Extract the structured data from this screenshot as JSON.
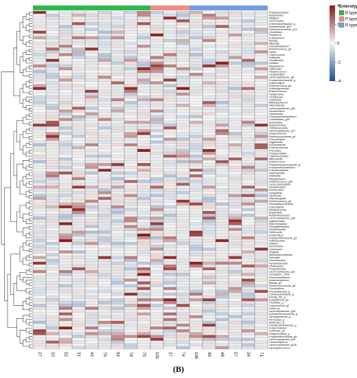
{
  "caption": "(B)",
  "chart_data": {
    "type": "heatmap",
    "title": "",
    "columns": [
      "27",
      "33",
      "52",
      "31",
      "42",
      "76",
      "94",
      "78",
      "75",
      "101",
      "37",
      "74",
      "106",
      "49",
      "48",
      "57",
      "24",
      "71"
    ],
    "column_groups": [
      "B type",
      "B type",
      "B type",
      "B type",
      "B type",
      "B type",
      "B type",
      "B type",
      "B type",
      "P type",
      "P type",
      "P type",
      "R type",
      "R type",
      "R type",
      "R type",
      "R type",
      "R type"
    ],
    "row_labels": [
      "Parabacteroides",
      "Bacteroides",
      "Alistipes",
      "Lachnospira",
      "Enterobacteriaceae_g",
      "Bacteroidales_g23",
      "Ruminococcaceae_g15",
      "Clostridium",
      "Roseburia",
      "Eubacterium",
      "Blautia",
      "Bilophila",
      "Faecalibacterium",
      "Ruminococcus_g2",
      "Dorea",
      "Coprococcus",
      "Sutterella",
      "Oscillibacter",
      "Dialister",
      "Megamonas",
      "Veillonella",
      "Streptococcus",
      "Lactobacillus",
      "Lachnospiraceae_g8",
      "Erysipelotrichaceae_g",
      "Anaerostipes",
      "Ruminococcus_g4",
      "Subdoligranulum",
      "Butyricicoccus",
      "Holdemania",
      "Turicibacter",
      "Collinsella",
      "Bifidobacterium",
      "Akkermansia",
      "Lachnospiraceae_g24",
      "Desulfovibrio",
      "Odoribacter",
      "Phascolarctobacterium",
      "Clostridiales_g20",
      "Barnesiella",
      "Butyricimonas",
      "Christensenella",
      "Lachnospiraceae_g17",
      "Anaerotruncus",
      "Ruminococcaceae_g4",
      "Flavonifractor",
      "Eggerthella",
      "Gordonibacter",
      "Porphyromonas",
      "Prevotella",
      "Paraprevotella",
      "Catenibacterium",
      "Mitsuokella",
      "Enterococcus",
      "Peptostreptococcaceae_g",
      "Erysipelatoclostridium",
      "Fusicatenibacter",
      "Haemophilus",
      "Klebsiella",
      "Megasphaera",
      "Ruminococcus_g2b",
      "Lachnoclostridium",
      "Intestinibacter",
      "Romboutsia",
      "Hungatella",
      "Tyzzerella",
      "Eisenbergiella",
      "Ruminococcus_g5",
      "Pseudoflavonifractor",
      "Coprobacter",
      "Intestinimonas",
      "Butyrivibrio",
      "Acidaminococcus",
      "Lachnospiraceae_g18",
      "Agathobacter",
      "Marvinbryantia",
      "Senegalimassilia",
      "Holdemanella",
      "Sellimonas",
      "Anaerofilum",
      "Erysipelotrichaceae_g3",
      "Adlercreutzia",
      "Slackia",
      "Escherichia",
      "Citrobacter",
      "Shigella",
      "Methanobrevibacter",
      "Victivallis",
      "Cloacibacillus",
      "Pyramidobacter",
      "Oxalobacter",
      "Parasutterella",
      "Lachnospiraceae_g21",
      "Clostridium_XlVa",
      "Ruminiclostridium",
      "Anaerobutyricum",
      "Blautia_g2",
      "Ruminococcaceae_g6",
      "Succinivibrio",
      "Prevotellaceae_g",
      "Coriobacteriaceae_g",
      "Family_XIII_g",
      "Eubacterium_g3",
      "Clostridia_g",
      "Coprococcus_g2",
      "Dorea_g",
      "Lachnospiraceae_g16",
      "Acidaminococcaceae_g",
      "Synergistaceae_g",
      "Firmicutes_g",
      "Mollicutes_g",
      "Christensenellaceae_g",
      "Enterorhabdus",
      "Sutterella_g2",
      "Paraprevotella_g",
      "Erysipelotrichaceae_g9",
      "Lachnospiraceae_g19",
      "Cellulosilyticum",
      "Lachnospiraceae_g21b",
      "Synergistococcus"
    ],
    "values": [],
    "value_range": [
      -4,
      4
    ],
    "colorbar_ticks": [
      4,
      2,
      0,
      -2,
      -4
    ],
    "legend": {
      "title": "Enterotype",
      "items": [
        {
          "name": "B type",
          "color": "#2db84d"
        },
        {
          "name": "P type",
          "color": "#f08c84"
        },
        {
          "name": "R type",
          "color": "#6f9ee0"
        }
      ]
    },
    "colorscale": {
      "low": "#1d4f91",
      "mid": "#f4f4f4",
      "high": "#8b1a1a"
    },
    "dendrogram": "rows"
  }
}
